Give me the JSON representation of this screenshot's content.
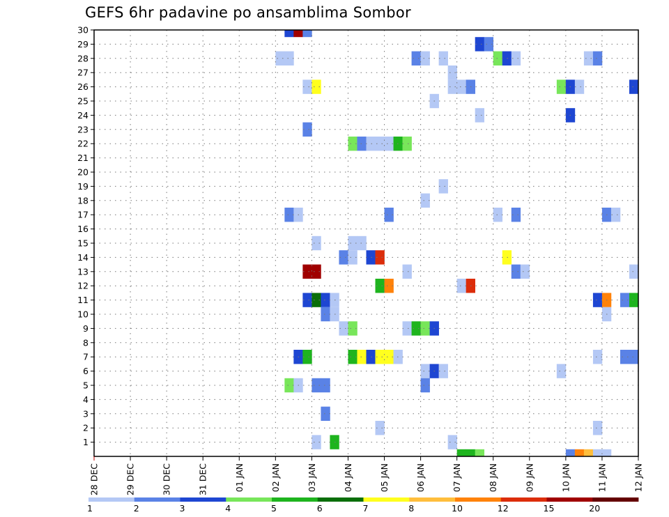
{
  "chart_data": {
    "type": "heatmap",
    "title": "GEFS 6hr padavine po ansamblima Sombor",
    "x_tick_labels": [
      "28 DEC",
      "29 DEC",
      "30 DEC",
      "31 DEC",
      "01 JAN",
      "02 JAN",
      "03 JAN",
      "04 JAN",
      "05 JAN",
      "06 JAN",
      "07 JAN",
      "08 JAN",
      "09 JAN",
      "10 JAN",
      "11 JAN",
      "12 JAN"
    ],
    "y_tick_labels": [
      "1",
      "2",
      "3",
      "4",
      "5",
      "6",
      "7",
      "8",
      "9",
      "10",
      "11",
      "12",
      "13",
      "14",
      "15",
      "16",
      "17",
      "18",
      "19",
      "20",
      "21",
      "22",
      "23",
      "24",
      "25",
      "26",
      "27",
      "28",
      "29",
      "30"
    ],
    "x_unit": "6-hour step (4 steps per day)",
    "y_range": [
      0,
      30
    ],
    "grid": true,
    "legend": {
      "position": "bottom",
      "labels": [
        "1",
        "2",
        "3",
        "4",
        "5",
        "6",
        "7",
        "8",
        "10",
        "12",
        "15",
        "20"
      ],
      "colors": [
        "#b4c8f5",
        "#5a82e6",
        "#1e46d2",
        "#78e65a",
        "#1eb41e",
        "#0a6e0a",
        "#ffff1e",
        "#ffbe3c",
        "#ff820a",
        "#dc2d0a",
        "#a00000",
        "#640000"
      ]
    },
    "cells": [
      {
        "m": 30,
        "s": 21,
        "c": 3
      },
      {
        "m": 30,
        "s": 22,
        "c": 11
      },
      {
        "m": 30,
        "s": 23,
        "c": 2
      },
      {
        "m": 29,
        "s": 42,
        "c": 3
      },
      {
        "m": 29,
        "s": 43,
        "c": 2
      },
      {
        "m": 28,
        "s": 20,
        "c": 1
      },
      {
        "m": 28,
        "s": 21,
        "c": 1
      },
      {
        "m": 28,
        "s": 35,
        "c": 2
      },
      {
        "m": 28,
        "s": 36,
        "c": 1
      },
      {
        "m": 28,
        "s": 38,
        "c": 1
      },
      {
        "m": 28,
        "s": 44,
        "c": 4
      },
      {
        "m": 28,
        "s": 45,
        "c": 3
      },
      {
        "m": 28,
        "s": 46,
        "c": 1
      },
      {
        "m": 28,
        "s": 54,
        "c": 1
      },
      {
        "m": 28,
        "s": 55,
        "c": 2
      },
      {
        "m": 27,
        "s": 39,
        "c": 1
      },
      {
        "m": 26,
        "s": 23,
        "c": 1
      },
      {
        "m": 26,
        "s": 24,
        "c": 7
      },
      {
        "m": 26,
        "s": 39,
        "c": 1
      },
      {
        "m": 26,
        "s": 40,
        "c": 1
      },
      {
        "m": 26,
        "s": 41,
        "c": 2
      },
      {
        "m": 26,
        "s": 51,
        "c": 4
      },
      {
        "m": 26,
        "s": 52,
        "c": 3
      },
      {
        "m": 26,
        "s": 53,
        "c": 1
      },
      {
        "m": 26,
        "s": 59,
        "c": 3
      },
      {
        "m": 25,
        "s": 37,
        "c": 1
      },
      {
        "m": 24,
        "s": 42,
        "c": 1
      },
      {
        "m": 24,
        "s": 52,
        "c": 3
      },
      {
        "m": 23,
        "s": 23,
        "c": 2
      },
      {
        "m": 22,
        "s": 28,
        "c": 4
      },
      {
        "m": 22,
        "s": 29,
        "c": 2
      },
      {
        "m": 22,
        "s": 30,
        "c": 1
      },
      {
        "m": 22,
        "s": 31,
        "c": 1
      },
      {
        "m": 22,
        "s": 32,
        "c": 1
      },
      {
        "m": 22,
        "s": 33,
        "c": 5
      },
      {
        "m": 22,
        "s": 34,
        "c": 4
      },
      {
        "m": 19,
        "s": 38,
        "c": 1
      },
      {
        "m": 18,
        "s": 36,
        "c": 1
      },
      {
        "m": 17,
        "s": 21,
        "c": 2
      },
      {
        "m": 17,
        "s": 22,
        "c": 1
      },
      {
        "m": 17,
        "s": 32,
        "c": 2
      },
      {
        "m": 17,
        "s": 44,
        "c": 1
      },
      {
        "m": 17,
        "s": 46,
        "c": 2
      },
      {
        "m": 17,
        "s": 56,
        "c": 2
      },
      {
        "m": 17,
        "s": 57,
        "c": 1
      },
      {
        "m": 15,
        "s": 24,
        "c": 1
      },
      {
        "m": 15,
        "s": 28,
        "c": 1
      },
      {
        "m": 15,
        "s": 29,
        "c": 1
      },
      {
        "m": 14,
        "s": 27,
        "c": 2
      },
      {
        "m": 14,
        "s": 28,
        "c": 1
      },
      {
        "m": 14,
        "s": 30,
        "c": 3
      },
      {
        "m": 14,
        "s": 31,
        "c": 10
      },
      {
        "m": 14,
        "s": 45,
        "c": 7
      },
      {
        "m": 13,
        "s": 23,
        "c": 11
      },
      {
        "m": 13,
        "s": 24,
        "c": 11
      },
      {
        "m": 13,
        "s": 34,
        "c": 1
      },
      {
        "m": 13,
        "s": 46,
        "c": 2
      },
      {
        "m": 13,
        "s": 47,
        "c": 1
      },
      {
        "m": 13,
        "s": 59,
        "c": 1
      },
      {
        "m": 12,
        "s": 31,
        "c": 5
      },
      {
        "m": 12,
        "s": 32,
        "c": 9
      },
      {
        "m": 12,
        "s": 40,
        "c": 1
      },
      {
        "m": 12,
        "s": 41,
        "c": 10
      },
      {
        "m": 11,
        "s": 23,
        "c": 3
      },
      {
        "m": 11,
        "s": 24,
        "c": 6
      },
      {
        "m": 11,
        "s": 25,
        "c": 3
      },
      {
        "m": 11,
        "s": 26,
        "c": 1
      },
      {
        "m": 11,
        "s": 55,
        "c": 3
      },
      {
        "m": 11,
        "s": 56,
        "c": 9
      },
      {
        "m": 11,
        "s": 58,
        "c": 2
      },
      {
        "m": 11,
        "s": 59,
        "c": 5
      },
      {
        "m": 10,
        "s": 25,
        "c": 2
      },
      {
        "m": 10,
        "s": 26,
        "c": 1
      },
      {
        "m": 10,
        "s": 56,
        "c": 1
      },
      {
        "m": 9,
        "s": 27,
        "c": 1
      },
      {
        "m": 9,
        "s": 28,
        "c": 4
      },
      {
        "m": 9,
        "s": 34,
        "c": 1
      },
      {
        "m": 9,
        "s": 35,
        "c": 5
      },
      {
        "m": 9,
        "s": 36,
        "c": 4
      },
      {
        "m": 9,
        "s": 37,
        "c": 3
      },
      {
        "m": 7,
        "s": 22,
        "c": 3
      },
      {
        "m": 7,
        "s": 23,
        "c": 5
      },
      {
        "m": 7,
        "s": 28,
        "c": 5
      },
      {
        "m": 7,
        "s": 29,
        "c": 7
      },
      {
        "m": 7,
        "s": 30,
        "c": 3
      },
      {
        "m": 7,
        "s": 31,
        "c": 7
      },
      {
        "m": 7,
        "s": 32,
        "c": 7
      },
      {
        "m": 7,
        "s": 33,
        "c": 1
      },
      {
        "m": 7,
        "s": 55,
        "c": 1
      },
      {
        "m": 7,
        "s": 58,
        "c": 2
      },
      {
        "m": 7,
        "s": 59,
        "c": 2
      },
      {
        "m": 6,
        "s": 36,
        "c": 1
      },
      {
        "m": 6,
        "s": 37,
        "c": 3
      },
      {
        "m": 6,
        "s": 38,
        "c": 1
      },
      {
        "m": 6,
        "s": 51,
        "c": 1
      },
      {
        "m": 5,
        "s": 21,
        "c": 4
      },
      {
        "m": 5,
        "s": 22,
        "c": 1
      },
      {
        "m": 5,
        "s": 24,
        "c": 2
      },
      {
        "m": 5,
        "s": 25,
        "c": 2
      },
      {
        "m": 5,
        "s": 36,
        "c": 2
      },
      {
        "m": 3,
        "s": 25,
        "c": 2
      },
      {
        "m": 2,
        "s": 31,
        "c": 1
      },
      {
        "m": 2,
        "s": 55,
        "c": 1
      },
      {
        "m": 1,
        "s": 24,
        "c": 1
      },
      {
        "m": 1,
        "s": 26,
        "c": 5
      },
      {
        "m": 1,
        "s": 39,
        "c": 1
      },
      {
        "m": 0,
        "s": 40,
        "c": 5
      },
      {
        "m": 0,
        "s": 41,
        "c": 5
      },
      {
        "m": 0,
        "s": 42,
        "c": 4
      },
      {
        "m": 0,
        "s": 52,
        "c": 2
      },
      {
        "m": 0,
        "s": 53,
        "c": 9
      },
      {
        "m": 0,
        "s": 54,
        "c": 8
      },
      {
        "m": 0,
        "s": 55,
        "c": 1
      },
      {
        "m": 0,
        "s": 56,
        "c": 1
      }
    ]
  }
}
